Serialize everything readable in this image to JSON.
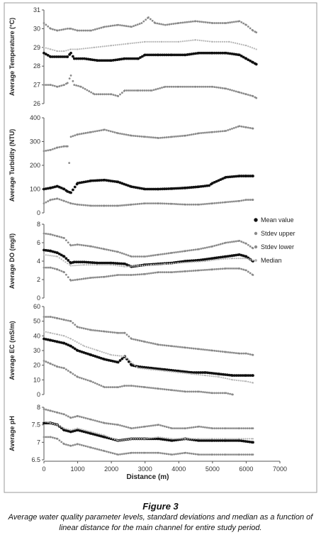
{
  "figure": {
    "label": "Figure 3",
    "caption": "Average water quality parameter levels, standard deviations and median as a function of linear distance for the main channel for entire study period."
  },
  "colors": {
    "mean": "#111111",
    "stdev_upper": "#8a8a8a",
    "stdev_lower": "#8a8a8a",
    "median": "#b5b5b5",
    "axis": "#555555",
    "frame": "#7a7a7a"
  },
  "legend": {
    "placement": "right",
    "entries": [
      "Mean value",
      "Stdev upper",
      "Stdev lower",
      "Median"
    ]
  },
  "chart_data": [
    {
      "type": "scatter",
      "ylabel": "Average Temperature (°C)",
      "ylim": [
        26,
        31
      ],
      "yticks": [
        26,
        27,
        28,
        29,
        30,
        31
      ],
      "xlim": [
        0,
        6400
      ],
      "series": [
        {
          "name": "Mean value",
          "x": [
            0,
            200,
            500,
            700,
            800,
            900,
            1200,
            1600,
            2000,
            2400,
            2800,
            3000,
            3400,
            3800,
            4200,
            4600,
            5000,
            5400,
            5800,
            6000,
            6200,
            6300
          ],
          "y": [
            28.7,
            28.5,
            28.5,
            28.5,
            28.7,
            28.4,
            28.4,
            28.3,
            28.3,
            28.4,
            28.4,
            28.6,
            28.6,
            28.6,
            28.6,
            28.7,
            28.7,
            28.7,
            28.6,
            28.4,
            28.2,
            28.1
          ]
        },
        {
          "name": "Stdev upper",
          "x": [
            0,
            200,
            400,
            700,
            800,
            1000,
            1400,
            1800,
            2200,
            2600,
            2900,
            3100,
            3300,
            3600,
            4000,
            4500,
            5000,
            5400,
            5800,
            6000,
            6200,
            6300
          ],
          "y": [
            30.3,
            30.0,
            29.9,
            30.0,
            30.0,
            29.9,
            29.9,
            30.1,
            30.2,
            30.1,
            30.3,
            30.6,
            30.3,
            30.2,
            30.3,
            30.4,
            30.3,
            30.3,
            30.4,
            30.2,
            29.9,
            29.8
          ]
        },
        {
          "name": "Stdev lower",
          "x": [
            0,
            200,
            400,
            600,
            700,
            800,
            900,
            1100,
            1500,
            2000,
            2200,
            2400,
            2800,
            3200,
            3600,
            4000,
            4500,
            5000,
            5400,
            5800,
            6000,
            6200,
            6300
          ],
          "y": [
            27.0,
            27.0,
            26.9,
            27.0,
            27.1,
            27.5,
            27.0,
            26.9,
            26.5,
            26.5,
            26.4,
            26.7,
            26.7,
            26.7,
            26.9,
            26.9,
            26.9,
            26.9,
            26.8,
            26.6,
            26.5,
            26.4,
            26.3
          ]
        },
        {
          "name": "Median",
          "x": [
            0,
            200,
            400,
            600,
            800,
            1000,
            1500,
            2000,
            2500,
            3000,
            3500,
            4000,
            4500,
            5000,
            5500,
            6000,
            6300
          ],
          "y": [
            29.0,
            28.9,
            28.8,
            28.8,
            28.9,
            28.9,
            29.0,
            29.1,
            29.2,
            29.3,
            29.3,
            29.3,
            29.4,
            29.3,
            29.3,
            29.1,
            28.9
          ]
        }
      ]
    },
    {
      "type": "scatter",
      "ylabel": "Average Turbidity (NTU)",
      "ylim": [
        0,
        400
      ],
      "yticks": [
        0,
        100,
        200,
        300,
        400
      ],
      "xlim": [
        0,
        6400
      ],
      "series": [
        {
          "name": "Mean value",
          "x": [
            0,
            200,
            400,
            600,
            700,
            800,
            1000,
            1400,
            1800,
            2200,
            2600,
            3000,
            3400,
            3800,
            4200,
            4600,
            4900,
            5000,
            5400,
            5800,
            6000,
            6200
          ],
          "y": [
            100,
            105,
            112,
            100,
            90,
            85,
            125,
            135,
            138,
            130,
            110,
            100,
            100,
            102,
            105,
            110,
            115,
            125,
            150,
            155,
            155,
            155
          ]
        },
        {
          "name": "Stdev upper",
          "x": [
            0,
            200,
            400,
            600,
            700,
            750,
            800,
            1000,
            1400,
            1800,
            2200,
            2600,
            3000,
            3400,
            3800,
            4200,
            4600,
            5000,
            5400,
            5800,
            6000,
            6200
          ],
          "y": [
            260,
            265,
            275,
            280,
            280,
            210,
            320,
            330,
            340,
            350,
            335,
            325,
            320,
            315,
            320,
            325,
            335,
            340,
            345,
            365,
            360,
            355
          ]
        },
        {
          "name": "Stdev lower",
          "x": [
            0,
            200,
            400,
            600,
            800,
            1000,
            1400,
            1800,
            2200,
            2600,
            3000,
            3400,
            3800,
            4200,
            4600,
            5000,
            5400,
            5800,
            6000,
            6200
          ],
          "y": [
            40,
            55,
            60,
            50,
            40,
            35,
            30,
            30,
            30,
            35,
            40,
            40,
            38,
            35,
            35,
            40,
            45,
            50,
            55,
            55
          ]
        }
      ]
    },
    {
      "type": "scatter",
      "ylabel": "Average DO (mg/l)",
      "ylim": [
        0,
        8
      ],
      "yticks": [
        0,
        2,
        4,
        6,
        8
      ],
      "xlim": [
        0,
        6400
      ],
      "series": [
        {
          "name": "Mean value",
          "x": [
            0,
            200,
            400,
            600,
            800,
            900,
            1200,
            1600,
            2000,
            2400,
            2600,
            3000,
            3400,
            3800,
            4200,
            4600,
            5000,
            5400,
            5800,
            6000,
            6200
          ],
          "y": [
            5.2,
            5.1,
            4.9,
            4.5,
            3.8,
            3.9,
            3.9,
            3.8,
            3.8,
            3.7,
            3.4,
            3.6,
            3.7,
            3.8,
            4.0,
            4.1,
            4.3,
            4.5,
            4.7,
            4.5,
            4.0
          ]
        },
        {
          "name": "Stdev upper",
          "x": [
            0,
            200,
            400,
            600,
            800,
            1000,
            1400,
            1800,
            2200,
            2600,
            3000,
            3400,
            3800,
            4200,
            4600,
            5000,
            5400,
            5800,
            6000,
            6200
          ],
          "y": [
            7.0,
            6.9,
            6.7,
            6.5,
            5.7,
            5.8,
            5.6,
            5.3,
            5.0,
            4.5,
            4.5,
            4.7,
            4.9,
            5.1,
            5.3,
            5.6,
            6.0,
            6.2,
            5.9,
            5.4
          ]
        },
        {
          "name": "Stdev lower",
          "x": [
            0,
            200,
            400,
            600,
            800,
            1000,
            1400,
            1800,
            2200,
            2600,
            3000,
            3400,
            3800,
            4200,
            4600,
            5000,
            5400,
            5800,
            6000,
            6200
          ],
          "y": [
            3.3,
            3.3,
            3.1,
            2.8,
            1.9,
            2.0,
            2.2,
            2.3,
            2.5,
            2.5,
            2.6,
            2.8,
            2.8,
            2.9,
            3.0,
            3.1,
            3.2,
            3.2,
            3.0,
            2.5
          ]
        },
        {
          "name": "Median",
          "x": [
            0,
            400,
            800,
            1200,
            1600,
            2000,
            2400,
            2800,
            3200,
            3600,
            4000,
            4400,
            4800,
            5200,
            5600,
            6000,
            6200
          ],
          "y": [
            4.7,
            4.5,
            3.5,
            3.6,
            3.6,
            3.6,
            3.4,
            3.5,
            3.6,
            3.7,
            3.8,
            3.9,
            4.0,
            4.2,
            4.3,
            4.3,
            4.1
          ]
        }
      ]
    },
    {
      "type": "scatter",
      "ylabel": "Average EC (mS/m)",
      "ylim": [
        0,
        60
      ],
      "yticks": [
        0,
        10,
        20,
        30,
        40,
        50,
        60
      ],
      "xlim": [
        0,
        6400
      ],
      "series": [
        {
          "name": "Mean value",
          "x": [
            0,
            200,
            400,
            600,
            800,
            1000,
            1400,
            1800,
            2200,
            2400,
            2600,
            2800,
            3200,
            3600,
            4000,
            4400,
            4800,
            5200,
            5600,
            6000,
            6200
          ],
          "y": [
            38,
            37,
            36,
            35,
            33,
            30,
            27,
            24,
            22,
            26,
            20,
            19,
            18,
            17,
            16,
            15,
            15,
            14,
            13,
            13,
            13
          ]
        },
        {
          "name": "Stdev upper",
          "x": [
            0,
            200,
            400,
            600,
            800,
            1000,
            1400,
            1800,
            2200,
            2400,
            2600,
            3000,
            3400,
            3800,
            4200,
            4600,
            5000,
            5400,
            5800,
            6000,
            6200
          ],
          "y": [
            53,
            53,
            52,
            51,
            50,
            46,
            44,
            43,
            42,
            42,
            38,
            36,
            34,
            33,
            32,
            31,
            30,
            29,
            28,
            28,
            27
          ]
        },
        {
          "name": "Stdev lower",
          "x": [
            0,
            200,
            400,
            600,
            800,
            1000,
            1400,
            1800,
            2200,
            2400,
            2600,
            3000,
            3400,
            3800,
            4200,
            4600,
            5000,
            5400,
            5600
          ],
          "y": [
            23,
            21,
            19,
            18,
            15,
            12,
            9,
            5,
            5,
            6,
            6,
            5,
            4,
            3,
            2,
            2,
            1,
            1,
            0
          ]
        },
        {
          "name": "Median",
          "x": [
            0,
            200,
            400,
            600,
            800,
            1200,
            1600,
            2000,
            2400,
            2800,
            3200,
            3600,
            4000,
            4400,
            4800,
            5200,
            5600,
            6000,
            6200
          ],
          "y": [
            43,
            42,
            41,
            40,
            38,
            33,
            30,
            27,
            26,
            18,
            17,
            16,
            15,
            14,
            13,
            12,
            10,
            9,
            8
          ]
        }
      ]
    },
    {
      "type": "scatter",
      "ylabel": "Average pH",
      "ylim": [
        6.5,
        8
      ],
      "yticks": [
        6.5,
        7,
        7.5,
        8
      ],
      "xlim": [
        0,
        7000
      ],
      "xticks": [
        0,
        1000,
        2000,
        3000,
        4000,
        5000,
        6000,
        7000
      ],
      "xlabel": "Distance (m)",
      "series": [
        {
          "name": "Mean value",
          "x": [
            0,
            200,
            400,
            600,
            800,
            1000,
            1400,
            1800,
            2200,
            2600,
            3000,
            3400,
            3800,
            4200,
            4600,
            5000,
            5400,
            5800,
            6200
          ],
          "y": [
            7.55,
            7.55,
            7.5,
            7.35,
            7.3,
            7.35,
            7.25,
            7.15,
            7.05,
            7.1,
            7.1,
            7.1,
            7.05,
            7.1,
            7.05,
            7.05,
            7.05,
            7.05,
            7.0
          ]
        },
        {
          "name": "Stdev upper",
          "x": [
            0,
            200,
            400,
            600,
            800,
            1000,
            1400,
            1800,
            2200,
            2600,
            3000,
            3400,
            3800,
            4200,
            4600,
            5000,
            5400,
            5800,
            6200
          ],
          "y": [
            7.95,
            7.9,
            7.85,
            7.8,
            7.7,
            7.75,
            7.65,
            7.55,
            7.5,
            7.4,
            7.45,
            7.5,
            7.4,
            7.4,
            7.45,
            7.4,
            7.4,
            7.4,
            7.4
          ]
        },
        {
          "name": "Stdev lower",
          "x": [
            0,
            200,
            400,
            600,
            800,
            1000,
            1400,
            1800,
            2200,
            2600,
            3000,
            3400,
            3800,
            4200,
            4600,
            5000,
            5400,
            5800,
            6200
          ],
          "y": [
            7.15,
            7.15,
            7.1,
            6.95,
            6.9,
            6.95,
            6.85,
            6.75,
            6.65,
            6.7,
            6.7,
            6.7,
            6.65,
            6.7,
            6.65,
            6.65,
            6.65,
            6.65,
            6.65
          ]
        },
        {
          "name": "Median",
          "x": [
            0,
            200,
            400,
            600,
            800,
            1000,
            1400,
            1800,
            2200,
            2600,
            3000,
            3400,
            3800,
            4200,
            4600,
            5000,
            5400,
            5800,
            6200
          ],
          "y": [
            7.6,
            7.55,
            7.5,
            7.4,
            7.35,
            7.4,
            7.3,
            7.2,
            7.05,
            7.1,
            7.1,
            7.15,
            7.1,
            7.1,
            7.1,
            7.1,
            7.1,
            7.1,
            7.1
          ]
        }
      ]
    }
  ]
}
